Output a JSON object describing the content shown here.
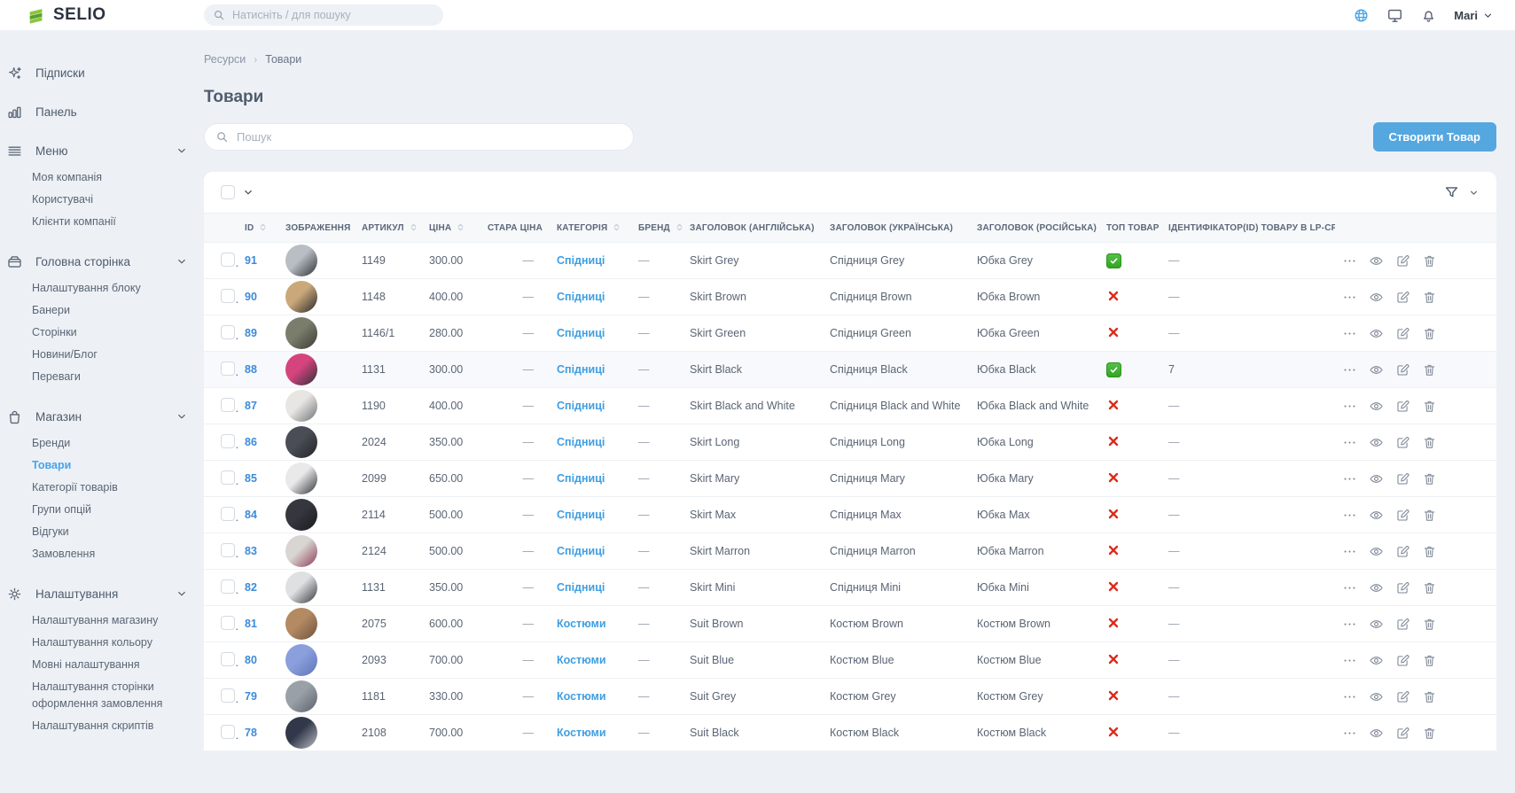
{
  "topbar": {
    "logo_text": "SELIO",
    "search_placeholder": "Натисніть / для пошуку",
    "user_name": "Mari",
    "icons": [
      {
        "slug": "language",
        "icon": "globe-icon",
        "accent": true
      },
      {
        "slug": "screen",
        "icon": "monitor-icon",
        "accent": false
      },
      {
        "slug": "notifications",
        "icon": "bell-icon",
        "accent": false
      }
    ]
  },
  "sidebar": {
    "sections": [
      {
        "slug": "subscriptions",
        "icon": "sparkles-icon",
        "label": "Підписки",
        "expandable": false,
        "children": []
      },
      {
        "slug": "dashboard",
        "icon": "bar-chart-icon",
        "label": "Панель",
        "expandable": false,
        "children": []
      },
      {
        "slug": "menu",
        "icon": "menu-icon",
        "label": "Меню",
        "expandable": true,
        "children": [
          {
            "slug": "my-company",
            "label": "Моя компанія",
            "active": false
          },
          {
            "slug": "users",
            "label": "Користувачі",
            "active": false
          },
          {
            "slug": "company-clients",
            "label": "Клієнти компанії",
            "active": false
          }
        ]
      },
      {
        "slug": "home-page",
        "icon": "archive-icon",
        "label": "Головна сторінка",
        "expandable": true,
        "children": [
          {
            "slug": "block-settings",
            "label": "Налаштування блоку",
            "active": false
          },
          {
            "slug": "banners",
            "label": "Банери",
            "active": false
          },
          {
            "slug": "pages",
            "label": "Сторінки",
            "active": false
          },
          {
            "slug": "news-blog",
            "label": "Новини/Блог",
            "active": false
          },
          {
            "slug": "advantages",
            "label": "Переваги",
            "active": false
          }
        ]
      },
      {
        "slug": "shop",
        "icon": "shopping-bag-icon",
        "label": "Магазин",
        "expandable": true,
        "children": [
          {
            "slug": "brands",
            "label": "Бренди",
            "active": false
          },
          {
            "slug": "products",
            "label": "Товари",
            "active": true
          },
          {
            "slug": "product-categories",
            "label": "Категорії товарів",
            "active": false
          },
          {
            "slug": "option-groups",
            "label": "Групи опцій",
            "active": false
          },
          {
            "slug": "reviews",
            "label": "Відгуки",
            "active": false
          },
          {
            "slug": "orders",
            "label": "Замовлення",
            "active": false
          }
        ]
      },
      {
        "slug": "settings",
        "icon": "gear-icon",
        "label": "Налаштування",
        "expandable": true,
        "children": [
          {
            "slug": "shop-settings",
            "label": "Налаштування магазину",
            "active": false
          },
          {
            "slug": "color-settings",
            "label": "Налаштування кольору",
            "active": false
          },
          {
            "slug": "language-settings",
            "label": "Мовні налаштування",
            "active": false
          },
          {
            "slug": "checkout-page-settings",
            "label": "Налаштування сторінки оформлення замовлення",
            "active": false
          },
          {
            "slug": "scripts-settings",
            "label": "Налаштування скриптів",
            "active": false
          }
        ]
      }
    ]
  },
  "content": {
    "breadcrumb": {
      "items": [
        "Ресурси",
        "Товари"
      ]
    },
    "title": "Товари",
    "search_placeholder": "Пошук",
    "create_button_label": "Створити Товар",
    "table": {
      "columns": [
        {
          "key": "id",
          "label": "ID",
          "sortable": true
        },
        {
          "key": "image",
          "label": "ЗОБРАЖЕННЯ",
          "sortable": false
        },
        {
          "key": "article",
          "label": "АРТИКУЛ",
          "sortable": true
        },
        {
          "key": "price",
          "label": "ЦІНА",
          "sortable": true
        },
        {
          "key": "old_price",
          "label": "СТАРА ЦІНА",
          "sortable": false
        },
        {
          "key": "category",
          "label": "КАТЕГОРІЯ",
          "sortable": true
        },
        {
          "key": "brand",
          "label": "БРЕНД",
          "sortable": true
        },
        {
          "key": "title_en",
          "label": "ЗАГОЛОВОК (АНГЛІЙСЬКА)",
          "sortable": false
        },
        {
          "key": "title_ua",
          "label": "ЗАГОЛОВОК (УКРАЇНСЬКА)",
          "sortable": false
        },
        {
          "key": "title_ru",
          "label": "ЗАГОЛОВОК (РОСІЙСЬКА)",
          "sortable": false
        },
        {
          "key": "top",
          "label": "ТОП ТОВАР",
          "sortable": false
        },
        {
          "key": "lp_crm",
          "label": "ІДЕНТИФІКАТОР(ID) ТОВАРУ В LP-CRM",
          "sortable": false
        }
      ],
      "row_actions": [
        {
          "slug": "more-actions",
          "icon": "ellipsis-icon"
        },
        {
          "slug": "view",
          "icon": "eye-icon"
        },
        {
          "slug": "edit",
          "icon": "edit-icon"
        },
        {
          "slug": "delete",
          "icon": "trash-icon"
        }
      ],
      "rows": [
        {
          "id": "91",
          "article": "1149",
          "price": "300.00",
          "old_price": "—",
          "category": "Спідниці",
          "brand": "—",
          "title_en": "Skirt Grey",
          "title_ua": "Спідниця Grey",
          "title_ru": "Юбка Grey",
          "top_product": true,
          "lp_crm_id": "—",
          "highlighted": false,
          "photo_colors": [
            "#b9bec4",
            "#2e3136"
          ]
        },
        {
          "id": "90",
          "article": "1148",
          "price": "400.00",
          "old_price": "—",
          "category": "Спідниці",
          "brand": "—",
          "title_en": "Skirt Brown",
          "title_ua": "Спідниця Brown",
          "title_ru": "Юбка Brown",
          "top_product": false,
          "lp_crm_id": "—",
          "highlighted": false,
          "photo_colors": [
            "#caa87a",
            "#26262a"
          ]
        },
        {
          "id": "89",
          "article": "1146/1",
          "price": "280.00",
          "old_price": "—",
          "category": "Спідниці",
          "brand": "—",
          "title_en": "Skirt Green",
          "title_ua": "Спідниця Green",
          "title_ru": "Юбка Green",
          "top_product": false,
          "lp_crm_id": "—",
          "highlighted": false,
          "photo_colors": [
            "#7a7d6b",
            "#3c3a33"
          ]
        },
        {
          "id": "88",
          "article": "1131",
          "price": "300.00",
          "old_price": "—",
          "category": "Спідниці",
          "brand": "—",
          "title_en": "Skirt Black",
          "title_ua": "Спідниця Black",
          "title_ru": "Юбка Black",
          "top_product": true,
          "lp_crm_id": "7",
          "highlighted": true,
          "photo_colors": [
            "#d6447e",
            "#2b2f38"
          ]
        },
        {
          "id": "87",
          "article": "1190",
          "price": "400.00",
          "old_price": "—",
          "category": "Спідниці",
          "brand": "—",
          "title_en": "Skirt Black and White",
          "title_ua": "Спідниця Black and White",
          "title_ru": "Юбка Black and White",
          "top_product": false,
          "lp_crm_id": "—",
          "highlighted": false,
          "photo_colors": [
            "#e8e6e2",
            "#6b7077"
          ]
        },
        {
          "id": "86",
          "article": "2024",
          "price": "350.00",
          "old_price": "—",
          "category": "Спідниці",
          "brand": "—",
          "title_en": "Skirt Long",
          "title_ua": "Спідниця Long",
          "title_ru": "Юбка Long",
          "top_product": false,
          "lp_crm_id": "—",
          "highlighted": false,
          "photo_colors": [
            "#4a4d55",
            "#23242a"
          ]
        },
        {
          "id": "85",
          "article": "2099",
          "price": "650.00",
          "old_price": "—",
          "category": "Спідниці",
          "brand": "—",
          "title_en": "Skirt Mary",
          "title_ua": "Спідниця Mary",
          "title_ru": "Юбка Mary",
          "top_product": false,
          "lp_crm_id": "—",
          "highlighted": false,
          "photo_colors": [
            "#e9e9ea",
            "#303238"
          ]
        },
        {
          "id": "84",
          "article": "2114",
          "price": "500.00",
          "old_price": "—",
          "category": "Спідниці",
          "brand": "—",
          "title_en": "Skirt Max",
          "title_ua": "Спідниця Max",
          "title_ru": "Юбка Max",
          "top_product": false,
          "lp_crm_id": "—",
          "highlighted": false,
          "photo_colors": [
            "#35373e",
            "#191a1f"
          ]
        },
        {
          "id": "83",
          "article": "2124",
          "price": "500.00",
          "old_price": "—",
          "category": "Спідниці",
          "brand": "—",
          "title_en": "Skirt Marron",
          "title_ua": "Спідниця Marron",
          "title_ru": "Юбка Marron",
          "top_product": false,
          "lp_crm_id": "—",
          "highlighted": false,
          "photo_colors": [
            "#d8d5d2",
            "#8c3b55"
          ]
        },
        {
          "id": "82",
          "article": "1131",
          "price": "350.00",
          "old_price": "—",
          "category": "Спідниці",
          "brand": "—",
          "title_en": "Skirt Mini",
          "title_ua": "Спідниця Mini",
          "title_ru": "Юбка Mini",
          "top_product": false,
          "lp_crm_id": "—",
          "highlighted": false,
          "photo_colors": [
            "#dfe0e2",
            "#35373d"
          ]
        },
        {
          "id": "81",
          "article": "2075",
          "price": "600.00",
          "old_price": "—",
          "category": "Костюми",
          "brand": "—",
          "title_en": "Suit Brown",
          "title_ua": "Костюм Brown",
          "title_ru": "Костюм Brown",
          "top_product": false,
          "lp_crm_id": "—",
          "highlighted": false,
          "photo_colors": [
            "#b48a62",
            "#6e5140"
          ]
        },
        {
          "id": "80",
          "article": "2093",
          "price": "700.00",
          "old_price": "—",
          "category": "Костюми",
          "brand": "—",
          "title_en": "Suit Blue",
          "title_ua": "Костюм Blue",
          "title_ru": "Костюм Blue",
          "top_product": false,
          "lp_crm_id": "—",
          "highlighted": false,
          "photo_colors": [
            "#8a9fdc",
            "#5d74b8"
          ]
        },
        {
          "id": "79",
          "article": "1181",
          "price": "330.00",
          "old_price": "—",
          "category": "Костюми",
          "brand": "—",
          "title_en": "Suit Grey",
          "title_ua": "Костюм Grey",
          "title_ru": "Костюм Grey",
          "top_product": false,
          "lp_crm_id": "—",
          "highlighted": false,
          "photo_colors": [
            "#9aa0a8",
            "#5b616b"
          ]
        },
        {
          "id": "78",
          "article": "2108",
          "price": "700.00",
          "old_price": "—",
          "category": "Костюми",
          "brand": "—",
          "title_en": "Suit Black",
          "title_ua": "Костюм Black",
          "title_ru": "Костюм Black",
          "top_product": false,
          "lp_crm_id": "—",
          "highlighted": false,
          "photo_colors": [
            "#31384a",
            "#b9bcc3"
          ]
        }
      ]
    }
  },
  "colors": {
    "accent_blue": "#55a7e0",
    "link_blue": "#3f9ee2",
    "logo_green": "#8cc63f",
    "top_yes_green": "#3db32c",
    "top_no_red": "#dd2b1c"
  }
}
